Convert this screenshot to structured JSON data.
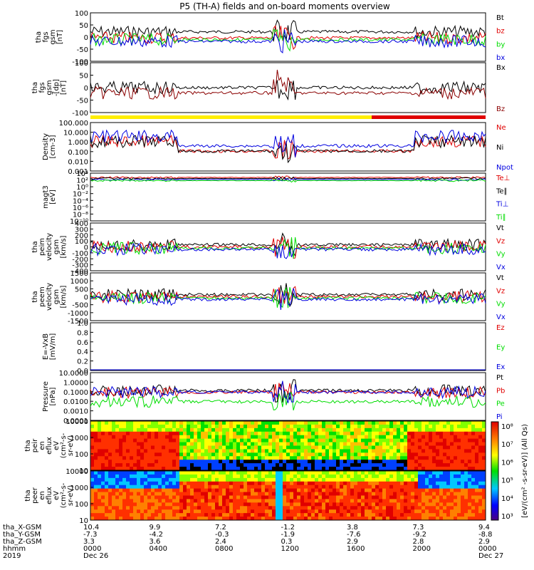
{
  "title": "P5 (TH-A) fields and on-board moments overview",
  "colors": {
    "black": "#000000",
    "red": "#e00000",
    "green": "#00dd00",
    "blue": "#0000e0",
    "darkred": "#8b0000",
    "yellow": "#ffee00"
  },
  "chart_data": [
    {
      "type": "line",
      "panel": "fgs_gsm",
      "ylabel": [
        "tha",
        "fgs",
        "gsm",
        "[nT]"
      ],
      "yticks": [
        "100",
        "50",
        "0",
        "-50",
        "-100"
      ],
      "series": [
        {
          "name": "Bt",
          "color": "black"
        },
        {
          "name": "bz",
          "color": "red"
        },
        {
          "name": "by",
          "color": "green"
        },
        {
          "name": "bx",
          "color": "blue"
        }
      ]
    },
    {
      "type": "line",
      "panel": "fgs_gsm_dp",
      "ylabel": [
        "tha",
        "fgs",
        "gsm",
        "-[dp]",
        "[nT]"
      ],
      "yticks": [
        "100",
        "50",
        "0",
        "-50",
        "-100"
      ],
      "series": [
        {
          "name": "Bx",
          "color": "black"
        },
        {
          "name": "Bz",
          "color": "darkred"
        }
      ]
    },
    {
      "type": "line",
      "panel": "density",
      "ylabel": [
        "Density",
        "[cm-3]"
      ],
      "yticks": [
        "100.000",
        "10.000",
        "1.000",
        "0.100",
        "0.010",
        "0.001"
      ],
      "series": [
        {
          "name": "Ne",
          "color": "red"
        },
        {
          "name": "Ni",
          "color": "black"
        },
        {
          "name": "Npot",
          "color": "blue"
        }
      ]
    },
    {
      "type": "line",
      "panel": "temperature",
      "ylabel": [
        "magt3",
        "[eV]"
      ],
      "yticks": [
        "10⁴",
        "10²",
        "10⁰",
        "10⁻²",
        "10⁻⁴",
        "10⁻⁶",
        "10⁻⁸",
        "10⁻¹⁰"
      ],
      "series": [
        {
          "name": "Te⊥",
          "color": "red"
        },
        {
          "name": "Te∥",
          "color": "black"
        },
        {
          "name": "Ti⊥",
          "color": "blue"
        },
        {
          "name": "Ti∥",
          "color": "green"
        }
      ]
    },
    {
      "type": "line",
      "panel": "peim_velocity",
      "ylabel": [
        "tha",
        "peim",
        "velocity",
        "gsm",
        "[km/s]"
      ],
      "yticks": [
        "400",
        "300",
        "200",
        "100",
        "0",
        "-100",
        "-200",
        "-300",
        "-400"
      ],
      "series": [
        {
          "name": "Vt",
          "color": "black"
        },
        {
          "name": "Vz",
          "color": "red"
        },
        {
          "name": "Vy",
          "color": "green"
        },
        {
          "name": "Vx",
          "color": "blue"
        }
      ]
    },
    {
      "type": "line",
      "panel": "peem_velocity",
      "ylabel": [
        "tha",
        "peem",
        "velocity",
        "gsm",
        "[km/s]"
      ],
      "yticks": [
        "1500",
        "1000",
        "500",
        "0",
        "-500",
        "-1000",
        "-1500"
      ],
      "series": [
        {
          "name": "Vt",
          "color": "black"
        },
        {
          "name": "Vz",
          "color": "red"
        },
        {
          "name": "Vy",
          "color": "green"
        },
        {
          "name": "Vx",
          "color": "blue"
        }
      ]
    },
    {
      "type": "line",
      "panel": "efield",
      "ylabel": [
        "E=-VxB",
        "[mV/m]"
      ],
      "yticks": [
        "1.0",
        "0.8",
        "0.6",
        "0.4",
        "0.2",
        "0.0"
      ],
      "series": [
        {
          "name": "Ez",
          "color": "red"
        },
        {
          "name": "Ey",
          "color": "green"
        },
        {
          "name": "Ex",
          "color": "blue"
        }
      ]
    },
    {
      "type": "line",
      "panel": "pressure",
      "ylabel": [
        "Pressure",
        "[nPa]"
      ],
      "yticks": [
        "10.0000",
        "1.0000",
        "0.1000",
        "0.0100",
        "0.0010",
        "0.0001"
      ],
      "series": [
        {
          "name": "Pt",
          "color": "black"
        },
        {
          "name": "Pb",
          "color": "red"
        },
        {
          "name": "Pe",
          "color": "green"
        },
        {
          "name": "Pi",
          "color": "blue"
        }
      ]
    },
    {
      "type": "heatmap",
      "panel": "peir_en_eflux",
      "ylabel": [
        "tha",
        "peir",
        "en",
        "eflux",
        "eV",
        "(cm²-s-",
        "sr-eV)"
      ],
      "yticks": [
        "10000",
        "1000",
        "100",
        "10"
      ]
    },
    {
      "type": "heatmap",
      "panel": "peer_en_eflux",
      "ylabel": [
        "tha",
        "peer",
        "en",
        "eflux",
        "eV",
        "(cm²-s-",
        "sr-eV)"
      ],
      "yticks": [
        "10000",
        "1000",
        "100",
        "10"
      ]
    }
  ],
  "colorbar": {
    "label": "[eV/(cm² -s-sr-eV)] (All Qs)",
    "ticks": [
      "10⁸",
      "10⁷",
      "10⁶",
      "10⁵",
      "10⁴",
      "10³"
    ]
  },
  "xaxis": {
    "row_labels": [
      "tha_X-GSM",
      "tha_Y-GSM",
      "tha_Z-GSM",
      "hhmm",
      "2019"
    ],
    "ticks": [
      {
        "x": "10.4",
        "y": "-7.3",
        "z": "3.3",
        "hhmm": "0000",
        "date": "Dec 26"
      },
      {
        "x": "9.9",
        "y": "-4.2",
        "z": "3.6",
        "hhmm": "0400",
        "date": ""
      },
      {
        "x": "7.2",
        "y": "-0.3",
        "z": "2.4",
        "hhmm": "0800",
        "date": ""
      },
      {
        "x": "-1.2",
        "y": "-1.9",
        "z": "0.3",
        "hhmm": "1200",
        "date": ""
      },
      {
        "x": "3.8",
        "y": "-7.6",
        "z": "2.9",
        "hhmm": "1600",
        "date": ""
      },
      {
        "x": "7.3",
        "y": "-9.2",
        "z": "2.8",
        "hhmm": "2000",
        "date": ""
      },
      {
        "x": "9.4",
        "y": "-8.8",
        "z": "2.9",
        "hhmm": "0000",
        "date": "Dec 27"
      }
    ]
  }
}
